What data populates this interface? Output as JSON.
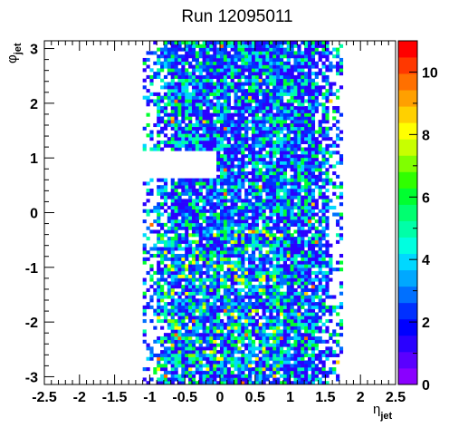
{
  "chart_data": {
    "type": "heatmap",
    "title": "Run 12095011",
    "xlabel": {
      "symbol": "η",
      "subscript": "jet"
    },
    "ylabel": {
      "symbol": "φ",
      "subscript": "jet"
    },
    "xlim": [
      -2.5,
      2.5
    ],
    "ylim": [
      -3.14159,
      3.14159
    ],
    "x_ticks": [
      -2.5,
      -2,
      -1.5,
      -1,
      -0.5,
      0,
      0.5,
      1,
      1.5,
      2,
      2.5
    ],
    "x_tick_labels": [
      "-2.5",
      "-2",
      "-1.5",
      "-1",
      "-0.5",
      "0",
      "0.5",
      "1",
      "1.5",
      "2",
      "2.5"
    ],
    "y_ticks": [
      -3,
      -2,
      -1,
      0,
      1,
      2,
      3
    ],
    "y_tick_labels": [
      "-3",
      "-2",
      "-1",
      "0",
      "1",
      "2",
      "3"
    ],
    "colorbar": {
      "range": [
        0,
        11
      ],
      "ticks": [
        0,
        2,
        4,
        6,
        8,
        10
      ],
      "tick_labels": [
        "0",
        "2",
        "4",
        "6",
        "8",
        "10"
      ],
      "colors": [
        "#8a00ff",
        "#5a00ff",
        "#2a00ff",
        "#0000ff",
        "#0030ff",
        "#0070ff",
        "#00a8ff",
        "#00d8ff",
        "#00ffe0",
        "#00ffa8",
        "#00ff70",
        "#00ff30",
        "#30ff00",
        "#80ff00",
        "#c8ff00",
        "#ffff00",
        "#ffd000",
        "#ffa000",
        "#ff7000",
        "#ff3800",
        "#ff0000"
      ]
    },
    "bins": {
      "x_bins": 100,
      "y_bins": 100,
      "occupied_region": {
        "eta_range": [
          -1.1,
          1.75
        ],
        "phi_gap": [
          0.65,
          1.15
        ],
        "gap_eta_range": [
          -1.1,
          -0.05
        ],
        "peak_count": 11
      }
    }
  }
}
